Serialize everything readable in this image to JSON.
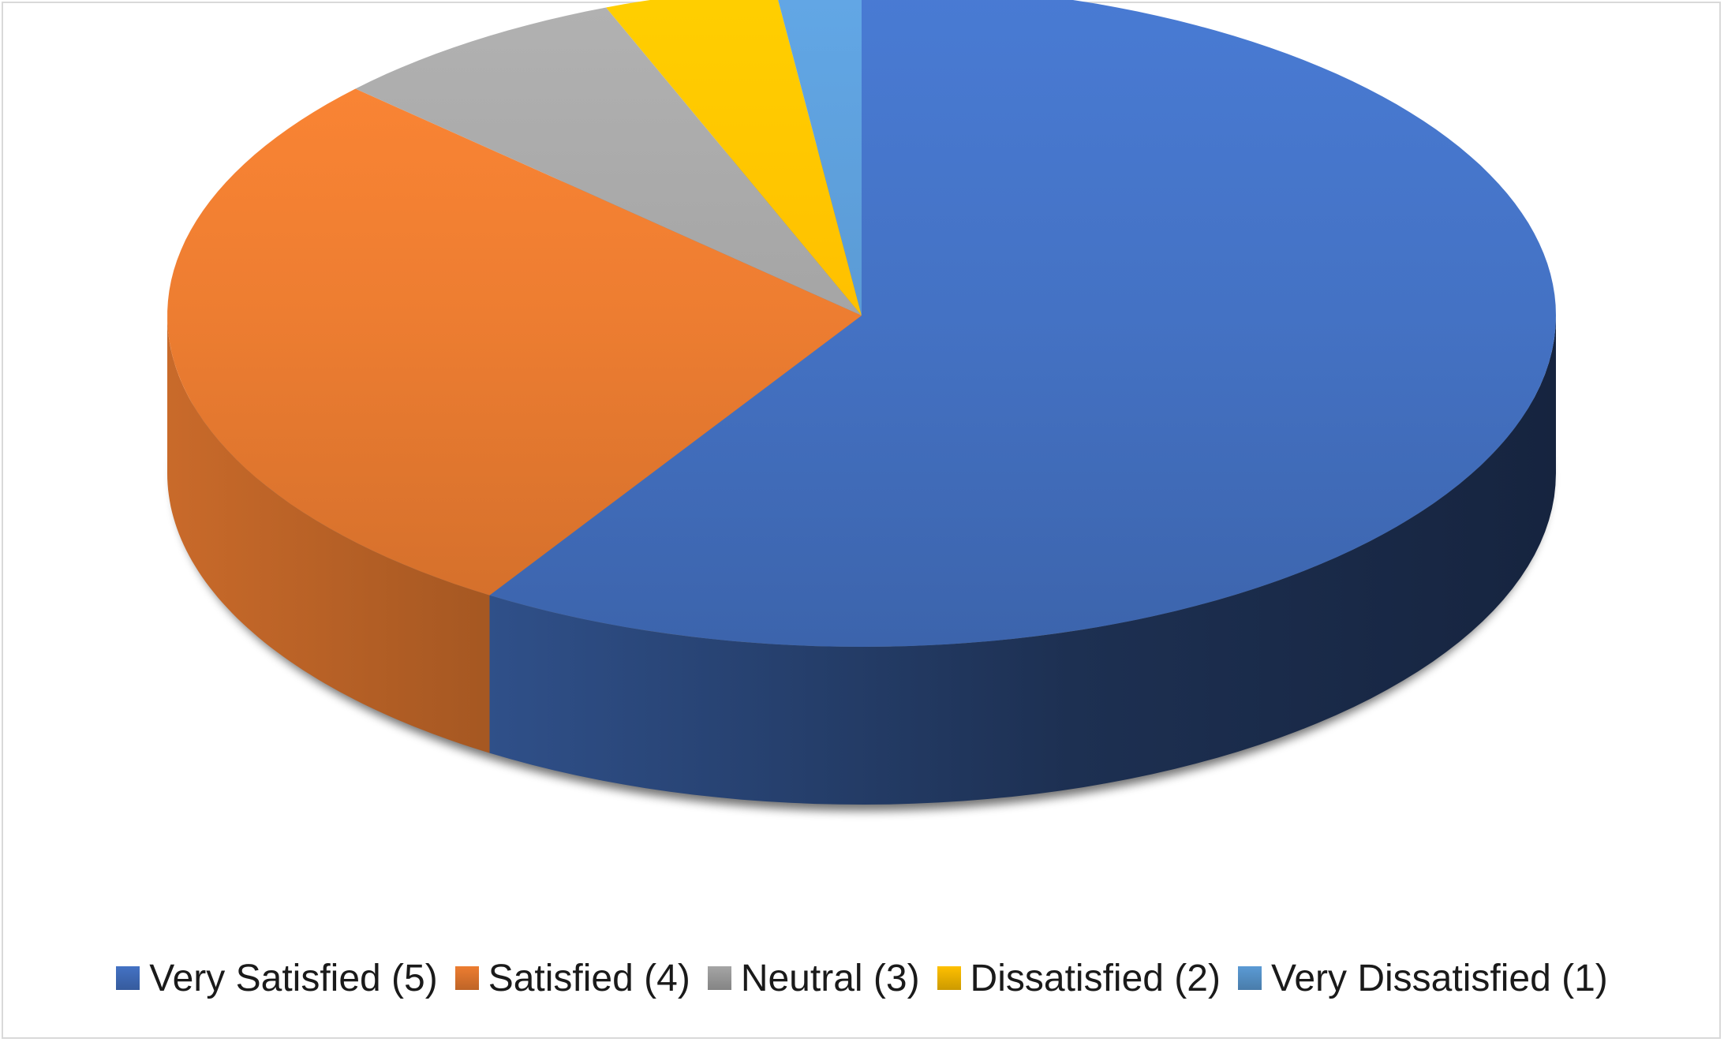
{
  "chart_data": {
    "type": "pie",
    "style": "3d",
    "title": "",
    "legend_position": "bottom",
    "slices": [
      {
        "label": "Very Satisfied (5)",
        "value": 59,
        "color": "#4472C4"
      },
      {
        "label": "Satisfied (4)",
        "value": 28,
        "color": "#ED7D31"
      },
      {
        "label": "Neutral (3)",
        "value": 7,
        "color": "#A5A5A5"
      },
      {
        "label": "Dissatisfied (2)",
        "value": 4,
        "color": "#FFC000"
      },
      {
        "label": "Very Dissatisfied (1)",
        "value": 2,
        "color": "#5B9BD5"
      }
    ]
  }
}
